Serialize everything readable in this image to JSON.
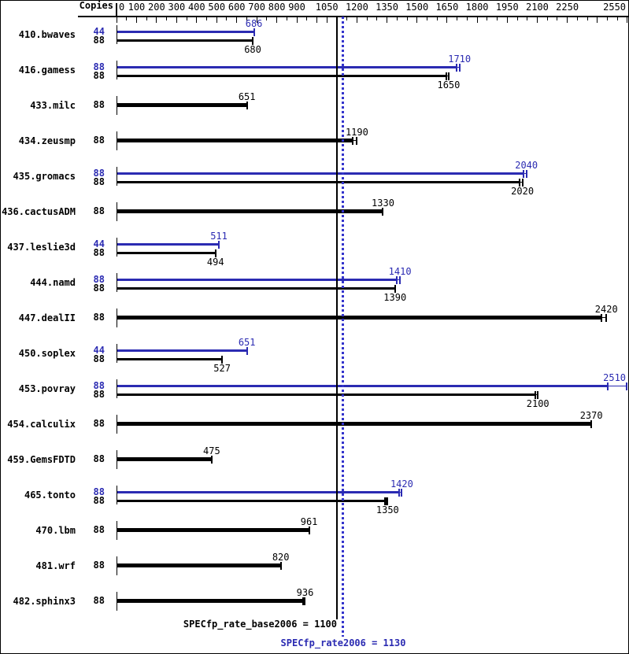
{
  "header": {
    "copies_label": "Copies"
  },
  "colors": {
    "peak_blue": "#2b2bb2",
    "base_black": "#000000",
    "dotted_line_blue": "#3434cc"
  },
  "chart_data": {
    "type": "bar",
    "orientation": "horizontal",
    "title": "",
    "xlabel": "Copies",
    "axis": {
      "min": 0,
      "max": 2550,
      "minor_step": 50,
      "labels": [
        {
          "value": 0,
          "text": "0"
        },
        {
          "value": 100,
          "text": "100"
        },
        {
          "value": 200,
          "text": "200"
        },
        {
          "value": 300,
          "text": "300"
        },
        {
          "value": 400,
          "text": "400"
        },
        {
          "value": 500,
          "text": "500"
        },
        {
          "value": 600,
          "text": "600"
        },
        {
          "value": 700,
          "text": "700"
        },
        {
          "value": 800,
          "text": "800"
        },
        {
          "value": 900,
          "text": "900"
        },
        {
          "value": 1050,
          "text": "1050"
        },
        {
          "value": 1200,
          "text": "1200"
        },
        {
          "value": 1350,
          "text": "1350"
        },
        {
          "value": 1500,
          "text": "1500"
        },
        {
          "value": 1650,
          "text": "1650"
        },
        {
          "value": 1800,
          "text": "1800"
        },
        {
          "value": 1950,
          "text": "1950"
        },
        {
          "value": 2100,
          "text": "2100"
        },
        {
          "value": 2250,
          "text": "2250"
        },
        {
          "value": 2550,
          "text": "2550"
        }
      ]
    },
    "reference_lines": [
      {
        "label": "SPECfp_rate_base2006 = 1100",
        "value": 1100,
        "style": "solid",
        "kind": "base"
      },
      {
        "label": "SPECfp_rate2006 = 1130",
        "value": 1130,
        "style": "dotted",
        "kind": "peak"
      }
    ],
    "benchmarks": [
      {
        "name": "410.bwaves",
        "bars": [
          {
            "copies": "44",
            "value": 686,
            "label": "686",
            "kind": "peak",
            "ticks": [
              686
            ],
            "label_pos": "above"
          },
          {
            "copies": "88",
            "value": 680,
            "label": "680",
            "kind": "base",
            "ticks": [
              680
            ],
            "label_pos": "below"
          }
        ]
      },
      {
        "name": "416.gamess",
        "bars": [
          {
            "copies": "88",
            "value": 1710,
            "label": "1710",
            "kind": "peak",
            "ticks": [
              1697,
              1712
            ],
            "label_pos": "above"
          },
          {
            "copies": "88",
            "value": 1650,
            "label": "1650",
            "kind": "base",
            "ticks": [
              1645,
              1658
            ],
            "label_pos": "below"
          }
        ]
      },
      {
        "name": "433.milc",
        "bars": [
          {
            "copies": "88",
            "value": 651,
            "label": "651",
            "kind": "base",
            "ticks": [
              651
            ],
            "label_pos": "above"
          }
        ]
      },
      {
        "name": "434.zeusmp",
        "bars": [
          {
            "copies": "88",
            "value": 1190,
            "label": "1190",
            "kind": "base",
            "ticks": [
              1178,
              1200
            ],
            "label_pos": "above"
          }
        ]
      },
      {
        "name": "435.gromacs",
        "bars": [
          {
            "copies": "88",
            "value": 2040,
            "label": "2040",
            "kind": "peak",
            "ticks": [
              2030,
              2046
            ],
            "label_pos": "above"
          },
          {
            "copies": "88",
            "value": 2020,
            "label": "2020",
            "kind": "base",
            "ticks": [
              2013,
              2026
            ],
            "label_pos": "below"
          }
        ]
      },
      {
        "name": "436.cactusADM",
        "bars": [
          {
            "copies": "88",
            "value": 1330,
            "label": "1330",
            "kind": "base",
            "ticks": [
              1330
            ],
            "label_pos": "above"
          }
        ]
      },
      {
        "name": "437.leslie3d",
        "bars": [
          {
            "copies": "44",
            "value": 511,
            "label": "511",
            "kind": "peak",
            "ticks": [
              511
            ],
            "label_pos": "above"
          },
          {
            "copies": "88",
            "value": 494,
            "label": "494",
            "kind": "base",
            "ticks": [
              494
            ],
            "label_pos": "below"
          }
        ]
      },
      {
        "name": "444.namd",
        "bars": [
          {
            "copies": "88",
            "value": 1410,
            "label": "1410",
            "kind": "peak",
            "ticks": [
              1400,
              1415
            ],
            "label_pos": "above"
          },
          {
            "copies": "88",
            "value": 1390,
            "label": "1390",
            "kind": "base",
            "ticks": [
              1390
            ],
            "label_pos": "below"
          }
        ]
      },
      {
        "name": "447.dealII",
        "bars": [
          {
            "copies": "88",
            "value": 2420,
            "label": "2420",
            "kind": "base",
            "ticks": [
              2420,
              2445
            ],
            "label_pos": "above"
          }
        ]
      },
      {
        "name": "450.soplex",
        "bars": [
          {
            "copies": "44",
            "value": 651,
            "label": "651",
            "kind": "peak",
            "ticks": [
              651
            ],
            "label_pos": "above"
          },
          {
            "copies": "88",
            "value": 527,
            "label": "527",
            "kind": "base",
            "ticks": [
              527
            ],
            "label_pos": "below"
          }
        ]
      },
      {
        "name": "453.povray",
        "bars": [
          {
            "copies": "88",
            "value": 2510,
            "label": "2510",
            "kind": "peak",
            "ticks": [
              2450,
              2548
            ],
            "label_pos": "above"
          },
          {
            "copies": "88",
            "value": 2100,
            "label": "2100",
            "kind": "base",
            "ticks": [
              2090,
              2103
            ],
            "label_pos": "below"
          }
        ]
      },
      {
        "name": "454.calculix",
        "bars": [
          {
            "copies": "88",
            "value": 2370,
            "label": "2370",
            "kind": "base",
            "ticks": [
              2370
            ],
            "label_pos": "above"
          }
        ]
      },
      {
        "name": "459.GemsFDTD",
        "bars": [
          {
            "copies": "88",
            "value": 475,
            "label": "475",
            "kind": "base",
            "ticks": [
              475
            ],
            "label_pos": "above"
          }
        ]
      },
      {
        "name": "465.tonto",
        "bars": [
          {
            "copies": "88",
            "value": 1420,
            "label": "1420",
            "kind": "peak",
            "ticks": [
              1412,
              1424
            ],
            "label_pos": "above"
          },
          {
            "copies": "88",
            "value": 1350,
            "label": "1350",
            "kind": "base",
            "ticks": [
              1340,
              1346,
              1353
            ],
            "label_pos": "below"
          }
        ]
      },
      {
        "name": "470.lbm",
        "bars": [
          {
            "copies": "88",
            "value": 961,
            "label": "961",
            "kind": "base",
            "ticks": [
              961
            ],
            "label_pos": "above"
          }
        ]
      },
      {
        "name": "481.wrf",
        "bars": [
          {
            "copies": "88",
            "value": 820,
            "label": "820",
            "kind": "base",
            "ticks": [
              820
            ],
            "label_pos": "above"
          }
        ]
      },
      {
        "name": "482.sphinx3",
        "bars": [
          {
            "copies": "88",
            "value": 936,
            "label": "936",
            "kind": "base",
            "ticks": [
              930,
              941
            ],
            "label_pos": "above"
          }
        ]
      }
    ]
  }
}
